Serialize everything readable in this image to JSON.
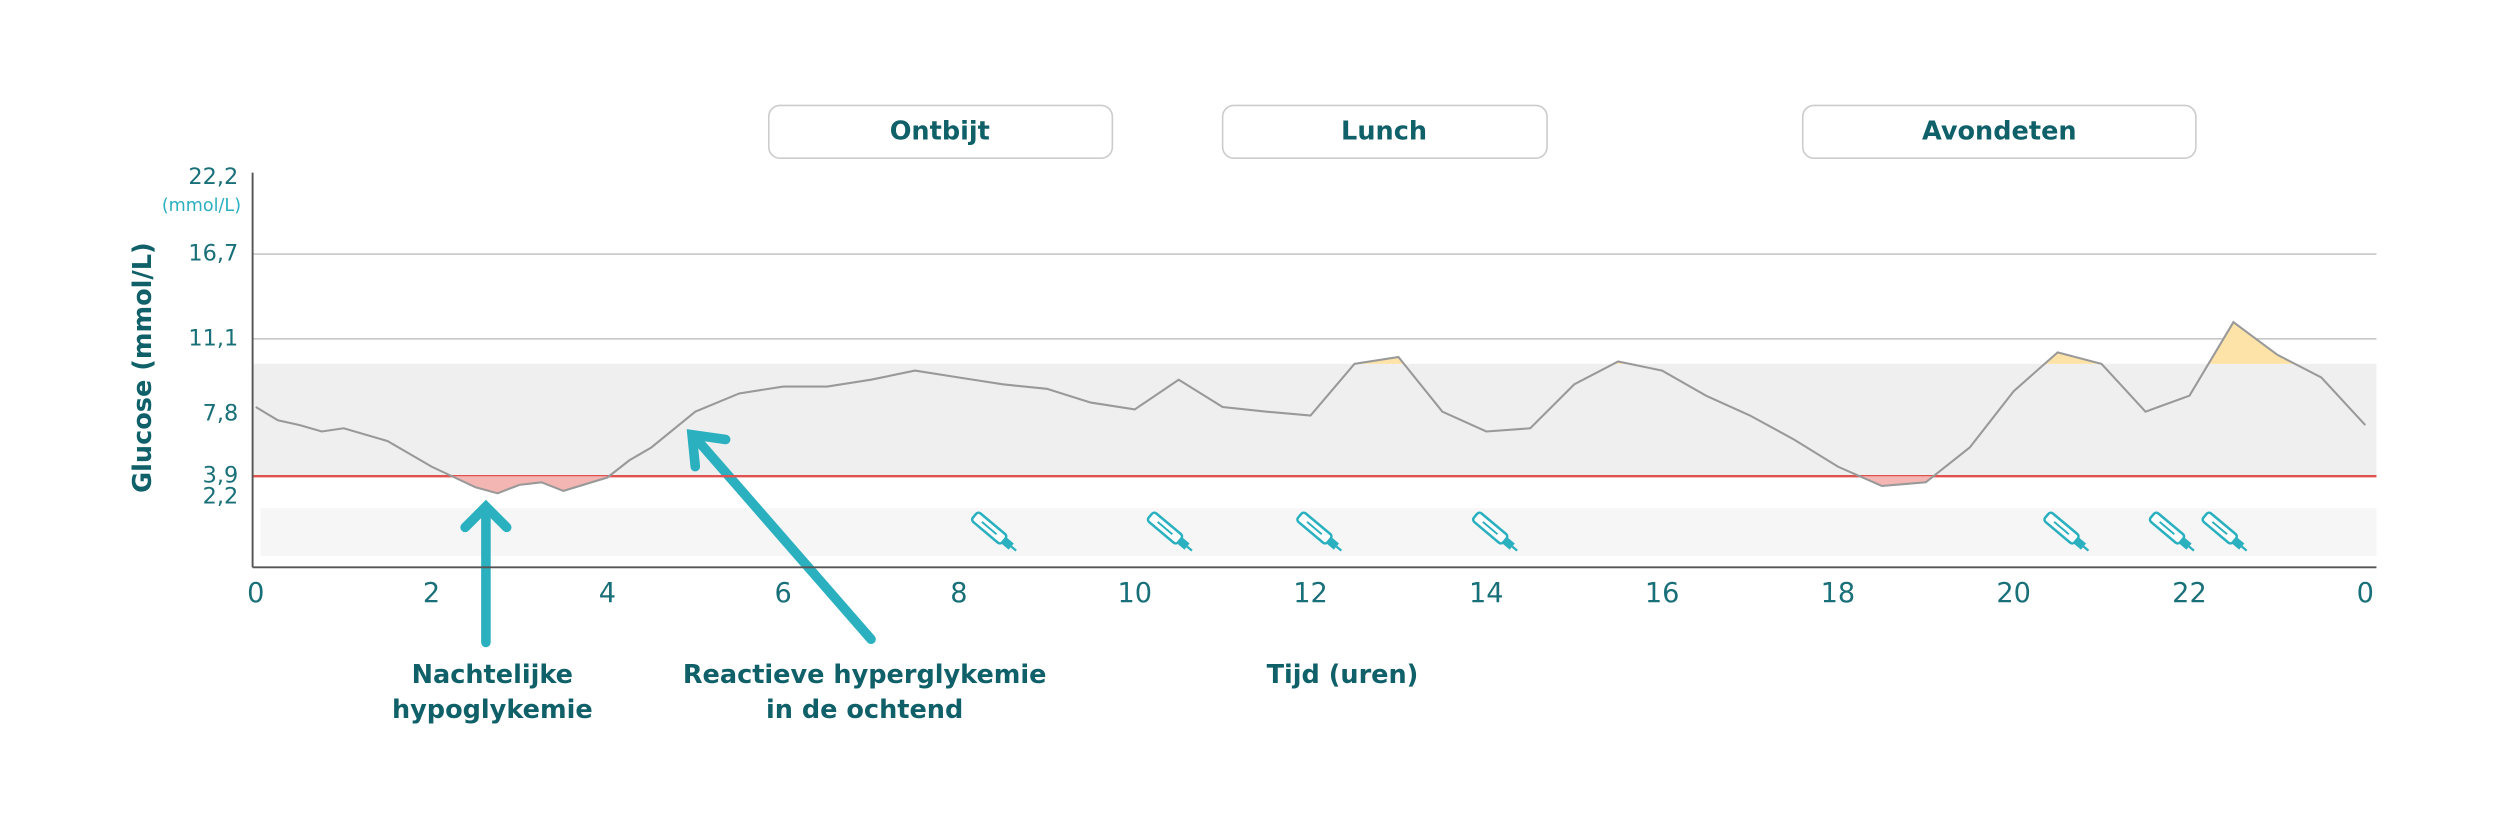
{
  "chart_data": {
    "type": "line",
    "y_label": "Glucose (mmol/L)",
    "y_unit": "(mmol/L)",
    "x_label": "Tijd (uren)",
    "meals": [
      "Ontbijt",
      "Lunch",
      "Avondeten"
    ],
    "annotations": [
      [
        "Nachtelijke",
        "hypoglykemie"
      ],
      [
        "Reactieve hyperglykemie",
        "in de ochtend"
      ]
    ],
    "xlim": [
      0,
      24
    ],
    "xticks": [
      0,
      2,
      4,
      6,
      8,
      10,
      12,
      14,
      16,
      18,
      20,
      22,
      {
        "value": 24,
        "label": "0"
      }
    ],
    "ylim": [
      0,
      22.2
    ],
    "yticks": [
      {
        "value": 2.2,
        "label": "2,2"
      },
      {
        "value": 3.9,
        "label": "3,9"
      },
      {
        "value": 7.8,
        "label": "7,8"
      },
      {
        "value": 11.1,
        "label": "11,1"
      },
      {
        "value": 16.7,
        "label": "16,7"
      },
      {
        "value": 22.2,
        "label": "22,2"
      }
    ],
    "target_range": [
      3.9,
      10
    ],
    "color": "#999999",
    "hypo_color": "#e0524f",
    "hyper_color": "#fde3a7",
    "x": [
      0,
      0.25,
      0.5,
      0.75,
      1,
      1.5,
      2,
      2.5,
      2.75,
      3,
      3.25,
      3.5,
      4,
      4.25,
      4.5,
      5,
      5.5,
      6,
      6.5,
      7,
      7.5,
      8,
      8.5,
      9,
      9.5,
      10,
      10.5,
      11,
      11.5,
      12,
      12.5,
      13,
      13.5,
      14,
      14.5,
      15,
      15.5,
      16,
      16.5,
      17,
      17.5,
      18,
      18.5,
      19,
      19.5,
      20,
      20.5,
      21,
      21.5,
      22,
      22.5,
      23,
      23.5,
      24
    ],
    "values": [
      8.1,
      7.4,
      7.1,
      6.7,
      6.9,
      6.1,
      4.5,
      3.0,
      2.5,
      3.2,
      3.4,
      2.7,
      3.8,
      4.9,
      5.7,
      7.9,
      8.7,
      9.0,
      9.0,
      9.3,
      9.7,
      9.4,
      9.1,
      8.9,
      8.3,
      8.0,
      9.3,
      8.1,
      7.9,
      7.7,
      10.0,
      10.3,
      7.9,
      6.7,
      6.9,
      9.1,
      10.1,
      9.7,
      8.6,
      7.7,
      6.2,
      4.5,
      3.1,
      3.4,
      5.7,
      8.8,
      10.5,
      10.0,
      7.9,
      8.6,
      12.2,
      10.4,
      9.4,
      7.1
    ],
    "injections": [
      8.4,
      10.4,
      12.1,
      14.1,
      20.6,
      21.8,
      22.4
    ]
  }
}
